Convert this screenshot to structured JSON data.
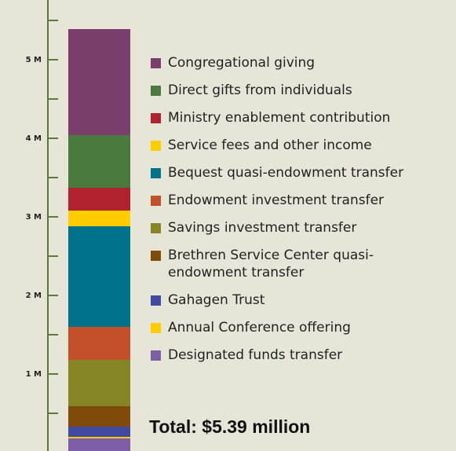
{
  "chart_data": {
    "type": "stacked_bar",
    "categories": [
      null
    ],
    "series": [
      {
        "name": "Congregational giving",
        "color": "#7b3f6e",
        "values": [
          1350000
        ]
      },
      {
        "name": "Direct gifts from individuals",
        "color": "#4a7a3e",
        "values": [
          670000
        ]
      },
      {
        "name": "Ministry enablement contribution",
        "color": "#b0232e",
        "values": [
          290000
        ]
      },
      {
        "name": "Service fees and other income",
        "color": "#ffcc00",
        "values": [
          200000
        ]
      },
      {
        "name": "Bequest quasi-endowment transfer",
        "color": "#00728a",
        "values": [
          1280000
        ]
      },
      {
        "name": "Endowment investment transfer",
        "color": "#c2502a",
        "values": [
          420000
        ]
      },
      {
        "name": "Savings investment transfer",
        "color": "#858526",
        "values": [
          590000
        ]
      },
      {
        "name": "Brethren Service Center quasi-endowment transfer",
        "color": "#7f4a0a",
        "values": [
          260000
        ]
      },
      {
        "name": "Gahagen Trust",
        "color": "#3f4aa0",
        "values": [
          130000
        ]
      },
      {
        "name": "Annual Conference offering",
        "color": "#ffcc00",
        "values": [
          20000
        ]
      },
      {
        "name": "Designated funds transfer",
        "color": "#7d5ea6",
        "values": [
          180000
        ]
      }
    ],
    "ylim": [
      0,
      5500000
    ],
    "yticks": [
      {
        "value": 1000000,
        "label": "1 M"
      },
      {
        "value": 2000000,
        "label": "2 M"
      },
      {
        "value": 3000000,
        "label": "3 M"
      },
      {
        "value": 4000000,
        "label": "4 M"
      },
      {
        "value": 5000000,
        "label": "5 M"
      }
    ],
    "yminor_ticks": [
      500000,
      1500000,
      2500000,
      3500000,
      4500000,
      5500000
    ],
    "total": "Total: $5.39 million"
  }
}
